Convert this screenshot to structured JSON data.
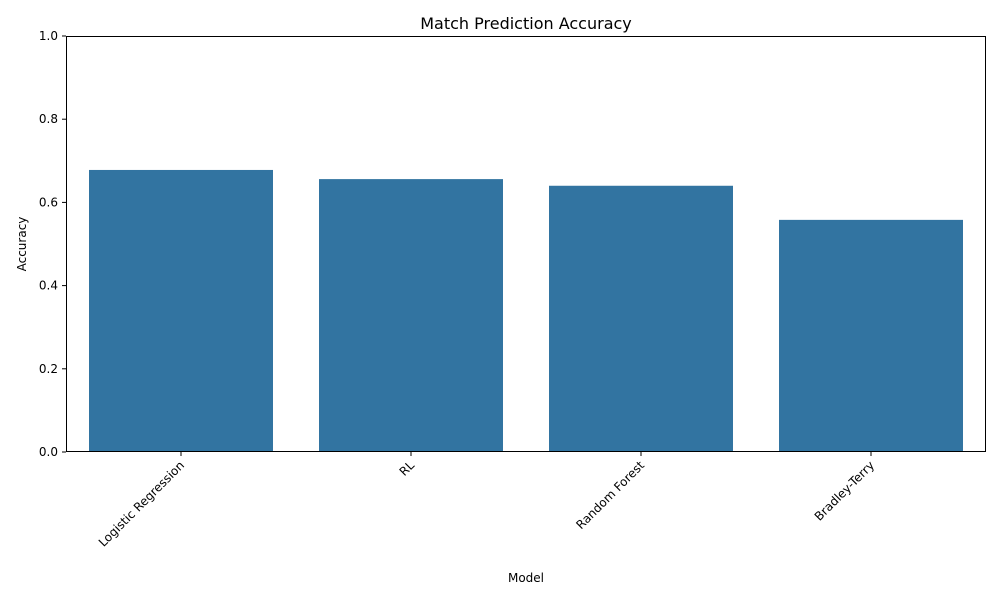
{
  "chart_data": {
    "type": "bar",
    "title": "Match Prediction Accuracy",
    "xlabel": "Model",
    "ylabel": "Accuracy",
    "categories": [
      "Logistic Regression",
      "RL",
      "Random Forest",
      "Bradley-Terry"
    ],
    "values": [
      0.678,
      0.656,
      0.64,
      0.558
    ],
    "ylim": [
      0,
      1.0
    ],
    "yticks": [
      "0.0",
      "0.2",
      "0.4",
      "0.6",
      "0.8",
      "1.0"
    ],
    "bar_color": "#3274a1",
    "grid": false,
    "legend": "none",
    "xtick_rotation": "45"
  }
}
